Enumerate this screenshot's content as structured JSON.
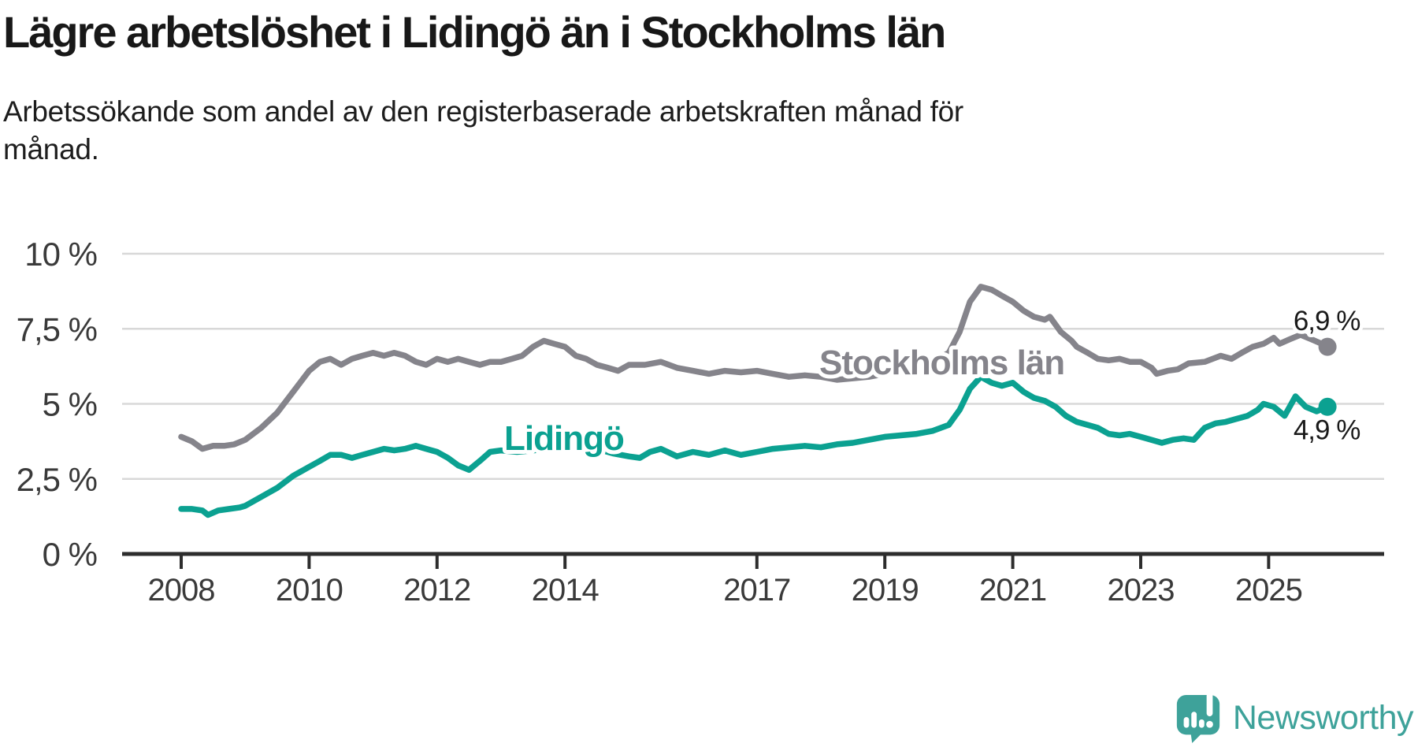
{
  "header": {
    "title": "Lägre arbetslöshet i Lidingö än i Stockholms län",
    "subtitle": "Arbetssökande som andel av den registerbaserade arbetskraften månad för\nmånad."
  },
  "chart_data": {
    "type": "line",
    "title": "Lägre arbetslöshet i Lidingö än i Stockholms län",
    "subtitle": "Arbetssökande som andel av den registerbaserade arbetskraften månad för månad.",
    "unit": "%",
    "grid": true,
    "legend": "inline-labels",
    "x_axis": {
      "range": [
        2007.1,
        2026.8
      ],
      "tick_years": [
        2008,
        2010,
        2012,
        2014,
        2017,
        2019,
        2021,
        2023,
        2025
      ],
      "tick_labels": [
        "2008",
        "2010",
        "2012",
        "2014",
        "2017",
        "2019",
        "2021",
        "2023",
        "2025"
      ]
    },
    "y_axis": {
      "range": [
        0,
        10
      ],
      "ticks": [
        0,
        2.5,
        5,
        7.5,
        10
      ],
      "tick_labels": [
        "0 %",
        "2,5 %",
        "5 %",
        "7,5 %",
        "10 %"
      ]
    },
    "series": [
      {
        "name": "Stockholms län",
        "color": "#85848b",
        "end_label": "6,9 %",
        "end_value": 6.9,
        "points": [
          [
            2008.0,
            3.9
          ],
          [
            2008.17,
            3.75
          ],
          [
            2008.33,
            3.5
          ],
          [
            2008.5,
            3.6
          ],
          [
            2008.67,
            3.6
          ],
          [
            2008.83,
            3.65
          ],
          [
            2009.0,
            3.8
          ],
          [
            2009.25,
            4.2
          ],
          [
            2009.5,
            4.7
          ],
          [
            2009.75,
            5.4
          ],
          [
            2010.0,
            6.1
          ],
          [
            2010.17,
            6.4
          ],
          [
            2010.33,
            6.5
          ],
          [
            2010.5,
            6.3
          ],
          [
            2010.67,
            6.5
          ],
          [
            2010.83,
            6.6
          ],
          [
            2011.0,
            6.7
          ],
          [
            2011.17,
            6.6
          ],
          [
            2011.33,
            6.7
          ],
          [
            2011.5,
            6.6
          ],
          [
            2011.67,
            6.4
          ],
          [
            2011.83,
            6.3
          ],
          [
            2012.0,
            6.5
          ],
          [
            2012.17,
            6.4
          ],
          [
            2012.33,
            6.5
          ],
          [
            2012.5,
            6.4
          ],
          [
            2012.67,
            6.3
          ],
          [
            2012.83,
            6.4
          ],
          [
            2013.0,
            6.4
          ],
          [
            2013.17,
            6.5
          ],
          [
            2013.33,
            6.6
          ],
          [
            2013.5,
            6.9
          ],
          [
            2013.67,
            7.1
          ],
          [
            2013.83,
            7.0
          ],
          [
            2014.0,
            6.9
          ],
          [
            2014.17,
            6.6
          ],
          [
            2014.33,
            6.5
          ],
          [
            2014.5,
            6.3
          ],
          [
            2014.67,
            6.2
          ],
          [
            2014.83,
            6.1
          ],
          [
            2015.0,
            6.3
          ],
          [
            2015.25,
            6.3
          ],
          [
            2015.5,
            6.4
          ],
          [
            2015.75,
            6.2
          ],
          [
            2016.0,
            6.1
          ],
          [
            2016.25,
            6.0
          ],
          [
            2016.5,
            6.1
          ],
          [
            2016.75,
            6.05
          ],
          [
            2017.0,
            6.1
          ],
          [
            2017.25,
            6.0
          ],
          [
            2017.5,
            5.9
          ],
          [
            2017.75,
            5.95
          ],
          [
            2018.0,
            5.9
          ],
          [
            2018.25,
            5.8
          ],
          [
            2018.5,
            5.85
          ],
          [
            2018.75,
            5.9
          ],
          [
            2019.0,
            6.0
          ],
          [
            2019.25,
            6.1
          ],
          [
            2019.5,
            6.2
          ],
          [
            2019.75,
            6.4
          ],
          [
            2020.0,
            6.7
          ],
          [
            2020.17,
            7.4
          ],
          [
            2020.33,
            8.4
          ],
          [
            2020.5,
            8.9
          ],
          [
            2020.67,
            8.8
          ],
          [
            2020.83,
            8.6
          ],
          [
            2021.0,
            8.4
          ],
          [
            2021.17,
            8.1
          ],
          [
            2021.33,
            7.9
          ],
          [
            2021.5,
            7.8
          ],
          [
            2021.58,
            7.9
          ],
          [
            2021.75,
            7.4
          ],
          [
            2021.92,
            7.1
          ],
          [
            2022.0,
            6.9
          ],
          [
            2022.17,
            6.7
          ],
          [
            2022.33,
            6.5
          ],
          [
            2022.5,
            6.45
          ],
          [
            2022.67,
            6.5
          ],
          [
            2022.83,
            6.4
          ],
          [
            2023.0,
            6.4
          ],
          [
            2023.17,
            6.2
          ],
          [
            2023.25,
            6.0
          ],
          [
            2023.42,
            6.1
          ],
          [
            2023.58,
            6.15
          ],
          [
            2023.75,
            6.35
          ],
          [
            2024.0,
            6.4
          ],
          [
            2024.25,
            6.6
          ],
          [
            2024.42,
            6.5
          ],
          [
            2024.58,
            6.7
          ],
          [
            2024.75,
            6.9
          ],
          [
            2024.92,
            7.0
          ],
          [
            2025.08,
            7.2
          ],
          [
            2025.17,
            7.0
          ],
          [
            2025.33,
            7.15
          ],
          [
            2025.5,
            7.3
          ],
          [
            2025.67,
            7.15
          ],
          [
            2025.83,
            7.0
          ],
          [
            2025.92,
            6.9
          ]
        ]
      },
      {
        "name": "Lidingö",
        "color": "#0ba191",
        "end_label": "4,9 %",
        "end_value": 4.9,
        "points": [
          [
            2008.0,
            1.5
          ],
          [
            2008.17,
            1.5
          ],
          [
            2008.33,
            1.45
          ],
          [
            2008.42,
            1.3
          ],
          [
            2008.58,
            1.45
          ],
          [
            2008.75,
            1.5
          ],
          [
            2008.92,
            1.55
          ],
          [
            2009.0,
            1.6
          ],
          [
            2009.25,
            1.9
          ],
          [
            2009.5,
            2.2
          ],
          [
            2009.75,
            2.6
          ],
          [
            2010.0,
            2.9
          ],
          [
            2010.17,
            3.1
          ],
          [
            2010.33,
            3.3
          ],
          [
            2010.5,
            3.3
          ],
          [
            2010.67,
            3.2
          ],
          [
            2010.83,
            3.3
          ],
          [
            2011.0,
            3.4
          ],
          [
            2011.17,
            3.5
          ],
          [
            2011.33,
            3.45
          ],
          [
            2011.5,
            3.5
          ],
          [
            2011.67,
            3.6
          ],
          [
            2011.83,
            3.5
          ],
          [
            2012.0,
            3.4
          ],
          [
            2012.17,
            3.2
          ],
          [
            2012.33,
            2.95
          ],
          [
            2012.5,
            2.8
          ],
          [
            2012.67,
            3.1
          ],
          [
            2012.83,
            3.4
          ],
          [
            2013.0,
            3.45
          ],
          [
            2013.25,
            3.4
          ],
          [
            2013.5,
            3.45
          ],
          [
            2013.75,
            3.5
          ],
          [
            2014.0,
            3.5
          ],
          [
            2014.25,
            3.6
          ],
          [
            2014.5,
            3.5
          ],
          [
            2014.75,
            3.35
          ],
          [
            2015.0,
            3.25
          ],
          [
            2015.17,
            3.2
          ],
          [
            2015.33,
            3.4
          ],
          [
            2015.5,
            3.5
          ],
          [
            2015.75,
            3.25
          ],
          [
            2016.0,
            3.4
          ],
          [
            2016.25,
            3.3
          ],
          [
            2016.5,
            3.45
          ],
          [
            2016.75,
            3.3
          ],
          [
            2017.0,
            3.4
          ],
          [
            2017.25,
            3.5
          ],
          [
            2017.5,
            3.55
          ],
          [
            2017.75,
            3.6
          ],
          [
            2018.0,
            3.55
          ],
          [
            2018.25,
            3.65
          ],
          [
            2018.5,
            3.7
          ],
          [
            2018.75,
            3.8
          ],
          [
            2019.0,
            3.9
          ],
          [
            2019.25,
            3.95
          ],
          [
            2019.5,
            4.0
          ],
          [
            2019.75,
            4.1
          ],
          [
            2020.0,
            4.3
          ],
          [
            2020.17,
            4.8
          ],
          [
            2020.33,
            5.5
          ],
          [
            2020.5,
            5.9
          ],
          [
            2020.67,
            5.7
          ],
          [
            2020.83,
            5.6
          ],
          [
            2021.0,
            5.7
          ],
          [
            2021.17,
            5.4
          ],
          [
            2021.33,
            5.2
          ],
          [
            2021.5,
            5.1
          ],
          [
            2021.67,
            4.9
          ],
          [
            2021.83,
            4.6
          ],
          [
            2022.0,
            4.4
          ],
          [
            2022.17,
            4.3
          ],
          [
            2022.33,
            4.2
          ],
          [
            2022.5,
            4.0
          ],
          [
            2022.67,
            3.95
          ],
          [
            2022.83,
            4.0
          ],
          [
            2023.0,
            3.9
          ],
          [
            2023.17,
            3.8
          ],
          [
            2023.33,
            3.7
          ],
          [
            2023.5,
            3.8
          ],
          [
            2023.67,
            3.85
          ],
          [
            2023.83,
            3.8
          ],
          [
            2024.0,
            4.2
          ],
          [
            2024.17,
            4.35
          ],
          [
            2024.33,
            4.4
          ],
          [
            2024.5,
            4.5
          ],
          [
            2024.67,
            4.6
          ],
          [
            2024.83,
            4.8
          ],
          [
            2024.92,
            5.0
          ],
          [
            2025.08,
            4.9
          ],
          [
            2025.25,
            4.6
          ],
          [
            2025.42,
            5.25
          ],
          [
            2025.58,
            4.9
          ],
          [
            2025.75,
            4.75
          ],
          [
            2025.92,
            4.9
          ]
        ]
      }
    ]
  },
  "branding": {
    "logo_text": "Newsworthy",
    "logo_color": "#3ea29a",
    "icon": "newsworthy-speech-bubble-chart-icon"
  },
  "colors": {
    "background": "#ffffff",
    "grid": "#d8d8d8",
    "axis": "#2d2d2d",
    "tick_label": "#3a3a3a",
    "annotation_text": "#1a1a1a",
    "halo": "#ffffff"
  }
}
